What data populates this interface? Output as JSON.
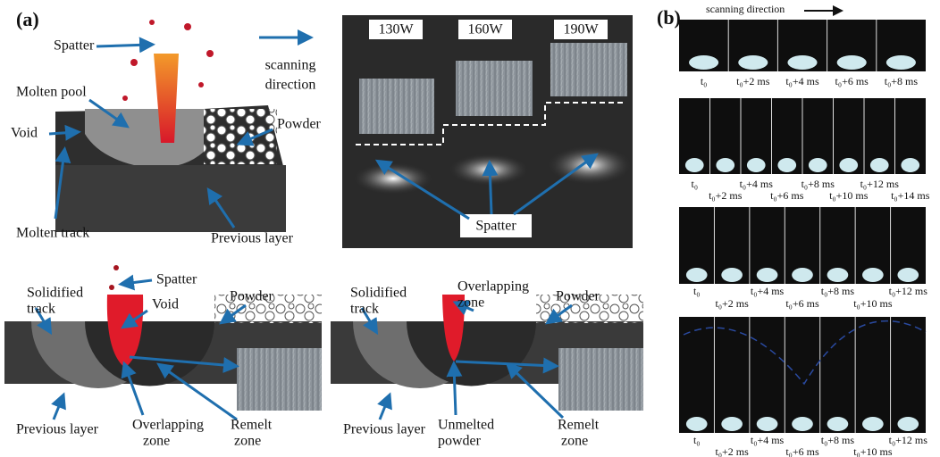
{
  "panel_a": {
    "label": "(a)",
    "top_left": {
      "spatter": "Spatter",
      "scanning_direction": [
        "scanning",
        "direction"
      ],
      "molten_pool": "Molten pool",
      "void": "Void",
      "powder": "Powder",
      "molten_track": "Molten track",
      "previous_layer": "Previous layer"
    },
    "top_right": {
      "powers": [
        "130W",
        "160W",
        "190W"
      ],
      "spatter": "Spatter"
    },
    "bottom_left": {
      "solidified_track": [
        "Solidified",
        "track"
      ],
      "spatter": "Spatter",
      "void": "Void",
      "powder": "Powder",
      "previous_layer": "Previous layer",
      "overlapping_zone": [
        "Overlapping",
        "zone"
      ],
      "remelt_zone": [
        "Remelt",
        "zone"
      ]
    },
    "bottom_right": {
      "solidified_track": [
        "Solidified",
        "track"
      ],
      "overlapping_zone": [
        "Overlapping",
        "zone"
      ],
      "powder": "Powder",
      "previous_layer": "Previous layer",
      "unmelted_powder": [
        "Unmelted",
        "powder"
      ],
      "remelt_zone": [
        "Remelt",
        "zone"
      ]
    }
  },
  "panel_b": {
    "label": "(b)",
    "scanning_direction": "scanning direction",
    "rows": [
      [
        "t₀",
        "t₀+2 ms",
        "t₀+4 ms",
        "t₀+6 ms",
        "t₀+8 ms"
      ],
      [
        "t₀",
        "t₀+2 ms",
        "t₀+4 ms",
        "t₀+6 ms",
        "t₀+8 ms",
        "t₀+10 ms",
        "t₀+12 ms",
        "t₀+14 ms"
      ],
      [
        "t₀",
        "t₀+2 ms",
        "t₀+4 ms",
        "t₀+6 ms",
        "t₀+8 ms",
        "t₀+10 ms",
        "t₀+12 ms"
      ],
      [
        "t₀",
        "t₀+2 ms",
        "t₀+4 ms",
        "t₀+6 ms",
        "t₀+8 ms",
        "t₀+10 ms",
        "t₀+12 ms"
      ]
    ]
  }
}
